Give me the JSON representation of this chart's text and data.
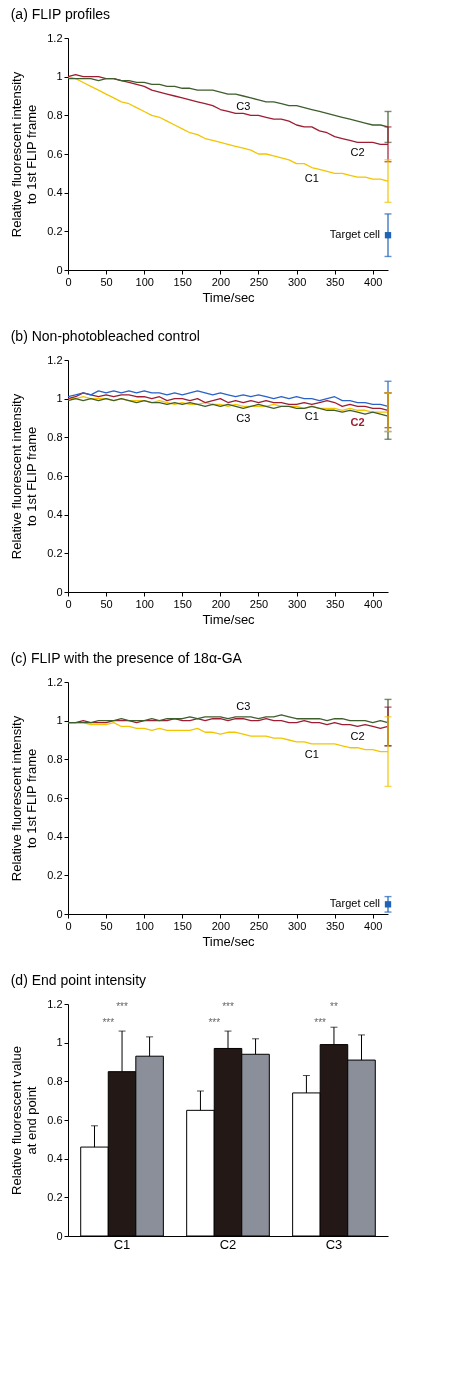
{
  "chart_data": [
    {
      "type": "line",
      "title": "(a) FLIP profiles",
      "xlabel": "Time/sec",
      "ylabel": "Relative fluorescent intensity\nto 1st FLIP frame",
      "x": [
        0,
        10,
        20,
        30,
        40,
        50,
        60,
        70,
        80,
        90,
        100,
        110,
        120,
        130,
        140,
        150,
        160,
        170,
        180,
        190,
        200,
        210,
        220,
        230,
        240,
        250,
        260,
        270,
        280,
        290,
        300,
        310,
        320,
        330,
        340,
        350,
        360,
        370,
        380,
        390,
        400,
        410,
        420
      ],
      "xlim": [
        0,
        420
      ],
      "xticks": [
        0,
        50,
        100,
        150,
        200,
        250,
        300,
        350,
        400
      ],
      "ylim": [
        0,
        1.2
      ],
      "yticks": [
        0,
        0.2,
        0.4,
        0.6,
        0.8,
        1,
        1.2
      ],
      "series": [
        {
          "name": "C1",
          "color": "#f2c500",
          "values": [
            1.0,
            0.99,
            0.97,
            0.95,
            0.93,
            0.91,
            0.89,
            0.87,
            0.86,
            0.84,
            0.82,
            0.8,
            0.79,
            0.77,
            0.75,
            0.73,
            0.71,
            0.7,
            0.68,
            0.67,
            0.66,
            0.65,
            0.64,
            0.63,
            0.62,
            0.6,
            0.6,
            0.59,
            0.58,
            0.57,
            0.55,
            0.55,
            0.53,
            0.52,
            0.51,
            0.5,
            0.5,
            0.49,
            0.48,
            0.48,
            0.47,
            0.47,
            0.46
          ],
          "errors": [
            null,
            null,
            null,
            null,
            null,
            null,
            null,
            null,
            null,
            null,
            null,
            null,
            null,
            null,
            null,
            null,
            null,
            null,
            null,
            null,
            null,
            null,
            null,
            null,
            null,
            null,
            null,
            null,
            null,
            null,
            null,
            null,
            null,
            null,
            null,
            null,
            null,
            null,
            null,
            null,
            null,
            null,
            0.11
          ]
        },
        {
          "name": "C2",
          "color": "#9e1d32",
          "values": [
            1.0,
            1.01,
            1.0,
            1.0,
            1.0,
            0.99,
            0.99,
            0.98,
            0.97,
            0.96,
            0.95,
            0.93,
            0.92,
            0.91,
            0.9,
            0.89,
            0.88,
            0.87,
            0.86,
            0.85,
            0.83,
            0.82,
            0.81,
            0.81,
            0.8,
            0.8,
            0.79,
            0.78,
            0.78,
            0.77,
            0.75,
            0.74,
            0.74,
            0.72,
            0.71,
            0.69,
            0.68,
            0.67,
            0.66,
            0.66,
            0.66,
            0.65,
            0.65
          ],
          "errors": [
            null,
            null,
            null,
            null,
            null,
            null,
            null,
            null,
            null,
            null,
            null,
            null,
            null,
            null,
            null,
            null,
            null,
            null,
            null,
            null,
            null,
            null,
            null,
            null,
            null,
            null,
            null,
            null,
            null,
            null,
            null,
            null,
            null,
            null,
            null,
            null,
            null,
            null,
            null,
            null,
            null,
            null,
            0.09
          ]
        },
        {
          "name": "C3",
          "color": "#3f5e2e",
          "values": [
            0.99,
            0.99,
            0.99,
            0.99,
            0.98,
            0.99,
            0.99,
            0.98,
            0.98,
            0.97,
            0.97,
            0.96,
            0.96,
            0.95,
            0.95,
            0.94,
            0.94,
            0.93,
            0.93,
            0.93,
            0.92,
            0.91,
            0.91,
            0.9,
            0.89,
            0.88,
            0.87,
            0.87,
            0.86,
            0.85,
            0.85,
            0.84,
            0.83,
            0.82,
            0.81,
            0.8,
            0.79,
            0.78,
            0.77,
            0.76,
            0.75,
            0.75,
            0.74
          ],
          "errors": [
            null,
            null,
            null,
            null,
            null,
            null,
            null,
            null,
            null,
            null,
            null,
            null,
            null,
            null,
            null,
            null,
            null,
            null,
            null,
            null,
            null,
            null,
            null,
            null,
            null,
            null,
            null,
            null,
            null,
            null,
            null,
            null,
            null,
            null,
            null,
            null,
            null,
            null,
            null,
            null,
            null,
            null,
            0.08
          ]
        },
        {
          "name": "Target cell",
          "type": "scatter",
          "marker": "square",
          "color": "#1f63b8",
          "x": [
            420
          ],
          "values": [
            0.18
          ],
          "errors": [
            0.11
          ]
        }
      ]
    },
    {
      "type": "line",
      "title": "(b) Non-photobleached control",
      "xlabel": "Time/sec",
      "ylabel": "Relative fluorescent intensity\nto 1st FLIP frame",
      "x": [
        0,
        10,
        20,
        30,
        40,
        50,
        60,
        70,
        80,
        90,
        100,
        110,
        120,
        130,
        140,
        150,
        160,
        170,
        180,
        190,
        200,
        210,
        220,
        230,
        240,
        250,
        260,
        270,
        280,
        290,
        300,
        310,
        320,
        330,
        340,
        350,
        360,
        370,
        380,
        390,
        400,
        410,
        420
      ],
      "xlim": [
        0,
        420
      ],
      "xticks": [
        0,
        50,
        100,
        150,
        200,
        250,
        300,
        350,
        400
      ],
      "ylim": [
        0,
        1.2
      ],
      "yticks": [
        0,
        0.2,
        0.4,
        0.6,
        0.8,
        1,
        1.2
      ],
      "series": [
        {
          "name": "C1",
          "color": "#f2c500",
          "values": [
            1.0,
            1.0,
            1.01,
            1.0,
            1.0,
            1.0,
            0.99,
            1.0,
            0.99,
            0.99,
            0.99,
            0.98,
            0.99,
            0.98,
            0.97,
            0.98,
            0.97,
            0.97,
            0.98,
            0.97,
            0.97,
            0.96,
            0.97,
            0.96,
            0.96,
            0.96,
            0.96,
            0.97,
            0.96,
            0.96,
            0.96,
            0.95,
            0.96,
            0.95,
            0.95,
            0.95,
            0.94,
            0.95,
            0.94,
            0.94,
            0.93,
            0.93,
            0.93
          ],
          "errors": [
            null,
            null,
            null,
            null,
            null,
            null,
            null,
            null,
            null,
            null,
            null,
            null,
            null,
            null,
            null,
            null,
            null,
            null,
            null,
            null,
            null,
            null,
            null,
            null,
            null,
            null,
            null,
            null,
            null,
            null,
            null,
            null,
            null,
            null,
            null,
            null,
            null,
            null,
            null,
            null,
            null,
            null,
            0.1
          ]
        },
        {
          "name": "C2",
          "color": "#9e1d32",
          "values": [
            1.0,
            1.01,
            1.03,
            1.02,
            1.01,
            1.02,
            1.01,
            1.02,
            1.02,
            1.01,
            1.01,
            1.0,
            1.01,
            0.99,
            1.0,
            1.0,
            0.99,
            1.0,
            0.98,
            0.99,
            1.0,
            0.98,
            0.99,
            0.98,
            0.99,
            0.98,
            0.99,
            0.98,
            0.98,
            0.97,
            0.97,
            0.98,
            0.97,
            0.98,
            0.99,
            0.98,
            0.96,
            0.97,
            0.96,
            0.96,
            0.95,
            0.95,
            0.94
          ],
          "errors": [
            null,
            null,
            null,
            null,
            null,
            null,
            null,
            null,
            null,
            null,
            null,
            null,
            null,
            null,
            null,
            null,
            null,
            null,
            null,
            null,
            null,
            null,
            null,
            null,
            null,
            null,
            null,
            null,
            null,
            null,
            null,
            null,
            null,
            null,
            null,
            null,
            null,
            null,
            null,
            null,
            null,
            null,
            0.09
          ]
        },
        {
          "name": "C3",
          "color": "#3f5e2e",
          "values": [
            0.99,
            1.0,
            0.99,
            1.0,
            0.99,
            1.0,
            0.99,
            1.0,
            0.99,
            0.98,
            0.99,
            0.98,
            0.98,
            0.97,
            0.98,
            0.97,
            0.98,
            0.97,
            0.96,
            0.97,
            0.96,
            0.97,
            0.96,
            0.95,
            0.96,
            0.97,
            0.96,
            0.95,
            0.96,
            0.96,
            0.95,
            0.95,
            0.96,
            0.95,
            0.94,
            0.94,
            0.93,
            0.94,
            0.93,
            0.92,
            0.93,
            0.92,
            0.91
          ],
          "errors": [
            null,
            null,
            null,
            null,
            null,
            null,
            null,
            null,
            null,
            null,
            null,
            null,
            null,
            null,
            null,
            null,
            null,
            null,
            null,
            null,
            null,
            null,
            null,
            null,
            null,
            null,
            null,
            null,
            null,
            null,
            null,
            null,
            null,
            null,
            null,
            null,
            null,
            null,
            null,
            null,
            null,
            null,
            0.12
          ]
        },
        {
          "color": "#2a62c9",
          "values": [
            1.01,
            1.02,
            1.03,
            1.02,
            1.04,
            1.03,
            1.04,
            1.03,
            1.04,
            1.03,
            1.04,
            1.03,
            1.03,
            1.02,
            1.03,
            1.02,
            1.03,
            1.04,
            1.03,
            1.02,
            1.03,
            1.02,
            1.01,
            1.02,
            1.01,
            1.02,
            1.01,
            1.0,
            1.01,
            1.0,
            1.01,
            1.0,
            1.0,
            0.99,
            1.0,
            1.01,
            0.99,
            0.99,
            0.98,
            0.98,
            0.97,
            0.97,
            0.96
          ],
          "errors": [
            null,
            null,
            null,
            null,
            null,
            null,
            null,
            null,
            null,
            null,
            null,
            null,
            null,
            null,
            null,
            null,
            null,
            null,
            null,
            null,
            null,
            null,
            null,
            null,
            null,
            null,
            null,
            null,
            null,
            null,
            null,
            null,
            null,
            null,
            null,
            null,
            null,
            null,
            null,
            null,
            null,
            null,
            0.13
          ]
        }
      ]
    },
    {
      "type": "line",
      "title": "(c) FLIP with the presence of 18α-GA",
      "xlabel": "Time/sec",
      "ylabel": "Relative fluorescent intensity\nto 1st FLIP frame",
      "x": [
        0,
        10,
        20,
        30,
        40,
        50,
        60,
        70,
        80,
        90,
        100,
        110,
        120,
        130,
        140,
        150,
        160,
        170,
        180,
        190,
        200,
        210,
        220,
        230,
        240,
        250,
        260,
        270,
        280,
        290,
        300,
        310,
        320,
        330,
        340,
        350,
        360,
        370,
        380,
        390,
        400,
        410,
        420
      ],
      "xlim": [
        0,
        420
      ],
      "xticks": [
        0,
        50,
        100,
        150,
        200,
        250,
        300,
        350,
        400
      ],
      "ylim": [
        0,
        1.2
      ],
      "yticks": [
        0,
        0.2,
        0.4,
        0.6,
        0.8,
        1,
        1.2
      ],
      "series": [
        {
          "name": "C1",
          "color": "#f2c500",
          "values": [
            0.99,
            0.99,
            0.99,
            0.98,
            0.98,
            0.98,
            0.99,
            0.97,
            0.97,
            0.96,
            0.96,
            0.95,
            0.96,
            0.95,
            0.95,
            0.95,
            0.95,
            0.96,
            0.94,
            0.94,
            0.93,
            0.94,
            0.94,
            0.93,
            0.92,
            0.92,
            0.92,
            0.91,
            0.91,
            0.9,
            0.89,
            0.89,
            0.88,
            0.88,
            0.88,
            0.88,
            0.87,
            0.86,
            0.86,
            0.85,
            0.85,
            0.84,
            0.84
          ],
          "errors": [
            null,
            null,
            null,
            null,
            null,
            null,
            null,
            null,
            null,
            null,
            null,
            null,
            null,
            null,
            null,
            null,
            null,
            null,
            null,
            null,
            null,
            null,
            null,
            null,
            null,
            null,
            null,
            null,
            null,
            null,
            null,
            null,
            null,
            null,
            null,
            null,
            null,
            null,
            null,
            null,
            null,
            null,
            0.18
          ]
        },
        {
          "name": "C2",
          "color": "#9e1d32",
          "values": [
            0.99,
            0.99,
            1.0,
            0.99,
            0.99,
            0.99,
            1.0,
            1.0,
            1.0,
            0.99,
            1.0,
            1.0,
            1.0,
            1.0,
            1.01,
            1.0,
            1.0,
            1.01,
            1.0,
            1.01,
            1.01,
            1.0,
            1.01,
            1.01,
            1.0,
            1.0,
            1.01,
            1.0,
            1.0,
            0.99,
            0.99,
            1.0,
            0.99,
            0.99,
            0.98,
            0.99,
            0.98,
            0.98,
            0.97,
            0.98,
            0.97,
            0.96,
            0.97
          ],
          "errors": [
            null,
            null,
            null,
            null,
            null,
            null,
            null,
            null,
            null,
            null,
            null,
            null,
            null,
            null,
            null,
            null,
            null,
            null,
            null,
            null,
            null,
            null,
            null,
            null,
            null,
            null,
            null,
            null,
            null,
            null,
            null,
            null,
            null,
            null,
            null,
            null,
            null,
            null,
            null,
            null,
            null,
            null,
            0.1
          ]
        },
        {
          "name": "C3",
          "color": "#3f5e2e",
          "values": [
            0.99,
            0.99,
            0.99,
            0.99,
            1.0,
            1.0,
            1.0,
            1.01,
            1.0,
            1.0,
            1.0,
            1.01,
            1.0,
            1.01,
            1.01,
            1.01,
            1.02,
            1.01,
            1.02,
            1.02,
            1.02,
            1.01,
            1.02,
            1.02,
            1.02,
            1.01,
            1.02,
            1.02,
            1.03,
            1.02,
            1.01,
            1.01,
            1.01,
            1.01,
            1.0,
            1.01,
            1.01,
            1.0,
            1.0,
            1.0,
            0.99,
            1.0,
            0.99
          ],
          "errors": [
            null,
            null,
            null,
            null,
            null,
            null,
            null,
            null,
            null,
            null,
            null,
            null,
            null,
            null,
            null,
            null,
            null,
            null,
            null,
            null,
            null,
            null,
            null,
            null,
            null,
            null,
            null,
            null,
            null,
            null,
            null,
            null,
            null,
            null,
            null,
            null,
            null,
            null,
            null,
            null,
            null,
            null,
            0.12
          ]
        },
        {
          "name": "Target cell",
          "type": "scatter",
          "marker": "square",
          "color": "#1f63b8",
          "x": [
            420
          ],
          "values": [
            0.05
          ],
          "errors": [
            0.04
          ]
        }
      ]
    },
    {
      "type": "bar",
      "title": "(d) End point intensity",
      "ylabel": "Relative fluorescent value\nat end point",
      "categories": [
        "C1",
        "C2",
        "C3"
      ],
      "ylim": [
        0,
        1.2
      ],
      "yticks": [
        0,
        0.2,
        0.4,
        0.6,
        0.8,
        1,
        1.2
      ],
      "series": [
        {
          "color": "#ffffff",
          "values": [
            0.46,
            0.65,
            0.74
          ],
          "errors": [
            [
              0.46,
              0.57
            ],
            [
              0.65,
              0.75
            ],
            [
              0.74,
              0.83
            ]
          ]
        },
        {
          "color": "#231815",
          "values": [
            0.85,
            0.97,
            0.99
          ],
          "errors": [
            [
              0.85,
              1.06
            ],
            [
              0.97,
              1.06
            ],
            [
              0.99,
              1.08
            ]
          ]
        },
        {
          "color": "#8b8f9a",
          "values": [
            0.93,
            0.94,
            0.91
          ],
          "errors": [
            [
              0.93,
              1.03
            ],
            [
              0.94,
              1.02
            ],
            [
              0.91,
              1.04
            ]
          ]
        }
      ],
      "annotations": [
        "***",
        "***",
        "***",
        "***",
        "**",
        "***"
      ]
    }
  ]
}
